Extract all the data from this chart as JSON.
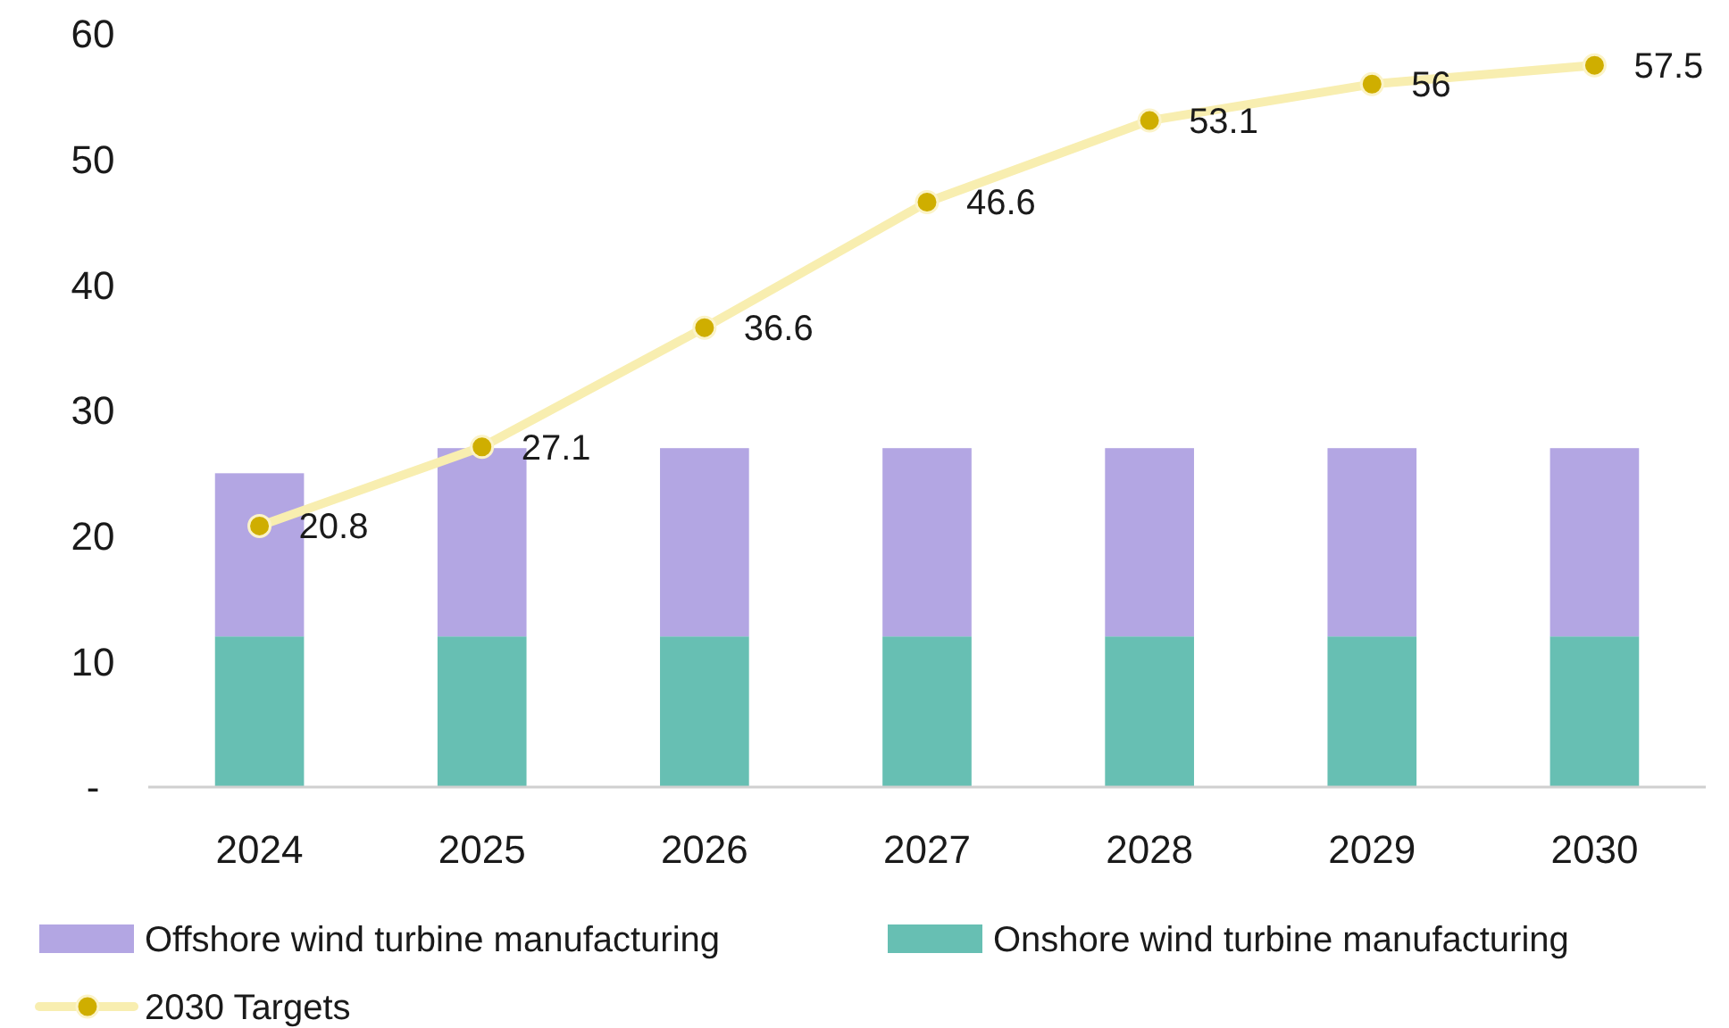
{
  "chart_data": {
    "type": "bar",
    "stacked": true,
    "categories": [
      "2024",
      "2025",
      "2026",
      "2027",
      "2028",
      "2029",
      "2030"
    ],
    "series": [
      {
        "name": "Onshore wind turbine manufacturing",
        "color": "#67bfb3",
        "values": [
          12,
          12,
          12,
          12,
          12,
          12,
          12
        ]
      },
      {
        "name": "Offshore wind turbine manufacturing",
        "color": "#b3a6e3",
        "values": [
          13,
          15,
          15,
          15,
          15,
          15,
          15
        ]
      },
      {
        "name": "2030 Targets",
        "type": "line",
        "color": "#f8eeb0",
        "marker": "circle",
        "values": [
          20.8,
          27.1,
          36.6,
          46.6,
          53.1,
          56,
          57.5
        ],
        "value_labels": [
          "20.8",
          "27.1",
          "36.6",
          "46.6",
          "53.1",
          "56",
          "57.5"
        ]
      }
    ],
    "ylim": [
      0,
      60
    ],
    "yticks": [
      {
        "value": 0,
        "label": "-"
      },
      10,
      20,
      30,
      40,
      50,
      60
    ],
    "grid": false,
    "legend": "bottom"
  }
}
